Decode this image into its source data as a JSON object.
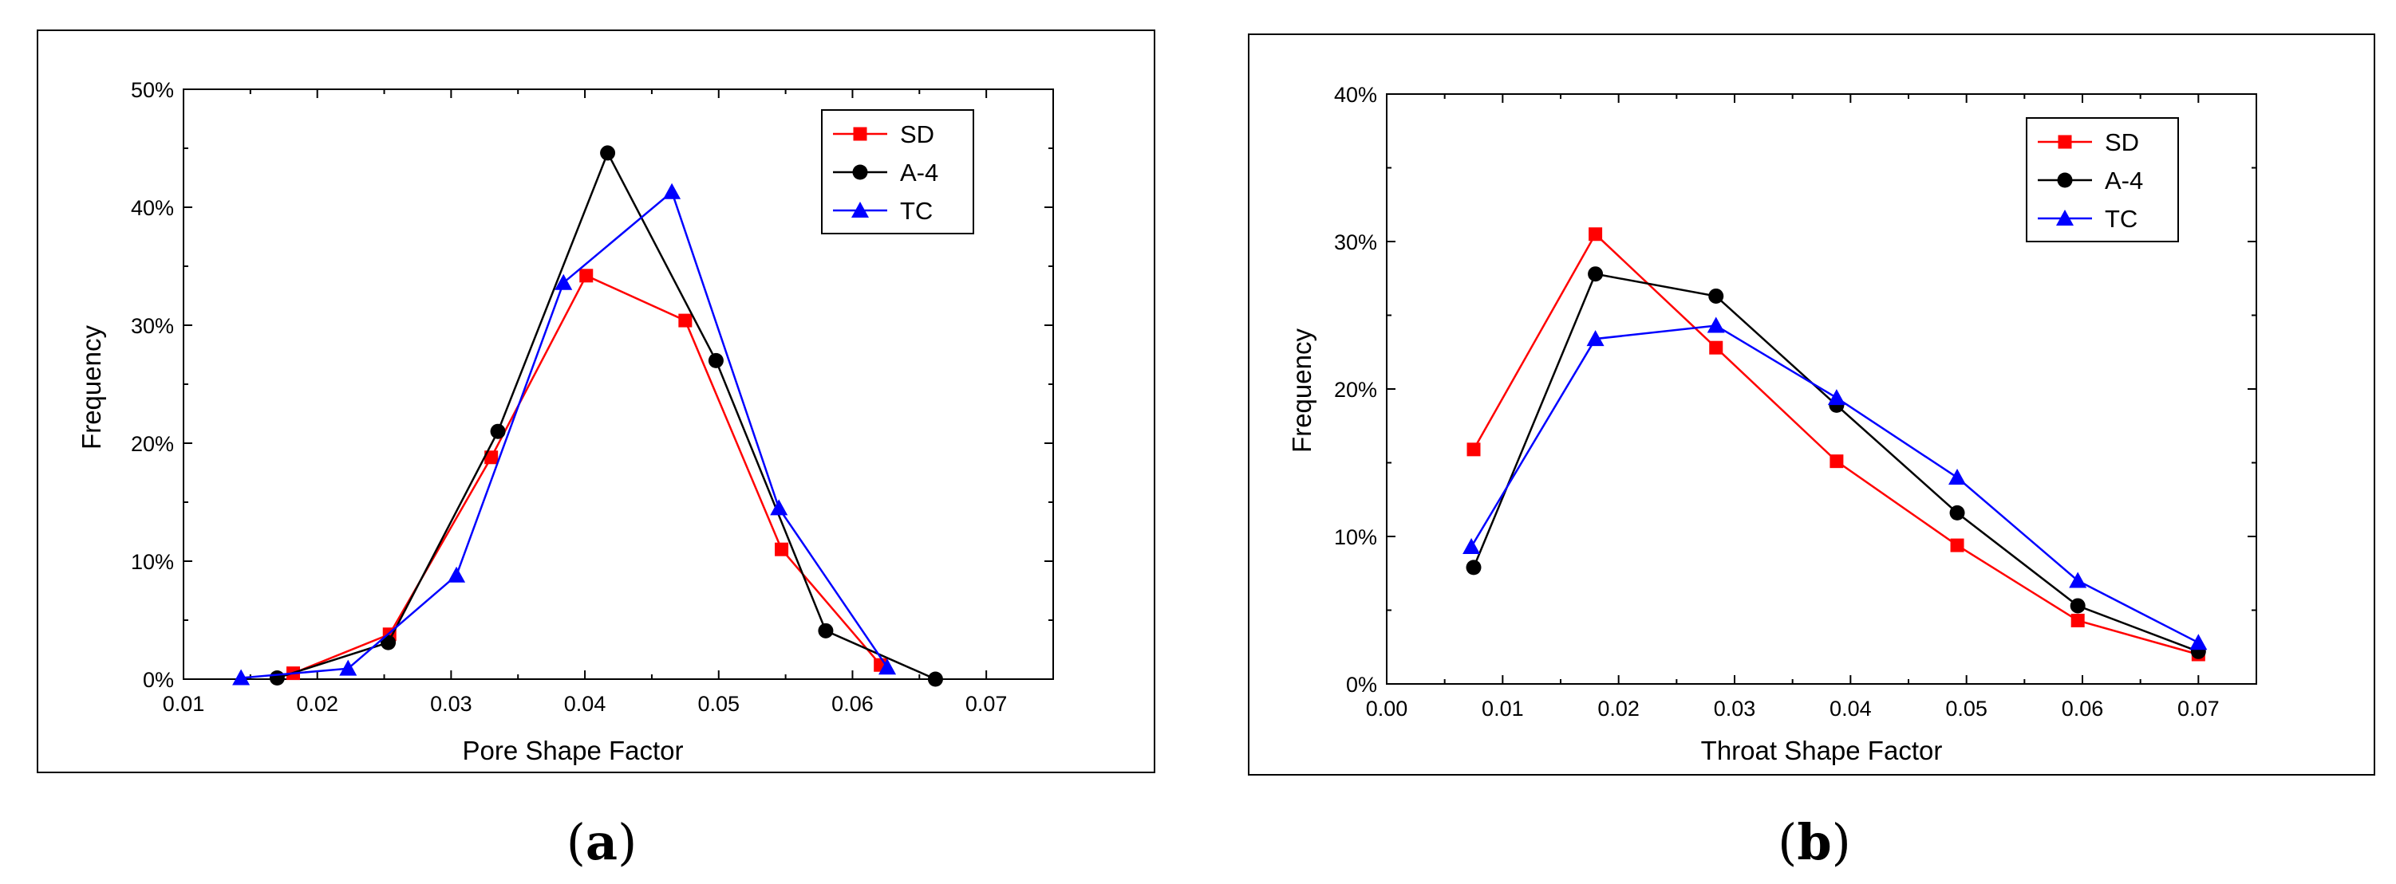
{
  "chart_data": [
    {
      "type": "line",
      "panel_label": "a",
      "title": "",
      "xlabel": "Pore Shape Factor",
      "ylabel": "Frequency",
      "xlim": [
        0.01,
        0.075
      ],
      "ylim": [
        0,
        0.5
      ],
      "xticks": [
        0.01,
        0.02,
        0.03,
        0.04,
        0.05,
        0.06,
        0.07
      ],
      "xtick_labels": [
        "0.01",
        "0.02",
        "0.03",
        "0.04",
        "0.05",
        "0.06",
        "0.07"
      ],
      "yticks": [
        0,
        0.1,
        0.2,
        0.3,
        0.4,
        0.5
      ],
      "ytick_labels": [
        "0%",
        "10%",
        "20%",
        "30%",
        "40%",
        "50%"
      ],
      "legend_position": "top-right",
      "series": [
        {
          "name": "SD",
          "color": "#ff0000",
          "marker": "square",
          "points": [
            [
              0.0182,
              0.005
            ],
            [
              0.0254,
              0.038
            ],
            [
              0.033,
              0.188
            ],
            [
              0.0401,
              0.342
            ],
            [
              0.0475,
              0.304
            ],
            [
              0.0547,
              0.11
            ],
            [
              0.0621,
              0.012
            ]
          ]
        },
        {
          "name": "A-4",
          "color": "#000000",
          "marker": "circle",
          "points": [
            [
              0.017,
              0.001
            ],
            [
              0.0253,
              0.031
            ],
            [
              0.0335,
              0.21
            ],
            [
              0.0417,
              0.446
            ],
            [
              0.0498,
              0.27
            ],
            [
              0.058,
              0.041
            ],
            [
              0.0662,
              0.0
            ]
          ]
        },
        {
          "name": "TC",
          "color": "#0000ff",
          "marker": "triangle",
          "points": [
            [
              0.0143,
              0.001
            ],
            [
              0.0223,
              0.009
            ],
            [
              0.0304,
              0.088
            ],
            [
              0.0384,
              0.336
            ],
            [
              0.0465,
              0.413
            ],
            [
              0.0545,
              0.145
            ],
            [
              0.0626,
              0.01
            ]
          ]
        }
      ]
    },
    {
      "type": "line",
      "panel_label": "b",
      "title": "",
      "xlabel": "Throat Shape Factor",
      "ylabel": "Frequency",
      "xlim": [
        0.0,
        0.075
      ],
      "ylim": [
        0,
        0.4
      ],
      "xticks": [
        0.0,
        0.01,
        0.02,
        0.03,
        0.04,
        0.05,
        0.06,
        0.07
      ],
      "xtick_labels": [
        "0.00",
        "0.01",
        "0.02",
        "0.03",
        "0.04",
        "0.05",
        "0.06",
        "0.07"
      ],
      "yticks": [
        0,
        0.1,
        0.2,
        0.3,
        0.4
      ],
      "ytick_labels": [
        "0%",
        "10%",
        "20%",
        "30%",
        "40%"
      ],
      "legend_position": "top-right",
      "series": [
        {
          "name": "SD",
          "color": "#ff0000",
          "marker": "square",
          "points": [
            [
              0.0075,
              0.159
            ],
            [
              0.018,
              0.305
            ],
            [
              0.0284,
              0.228
            ],
            [
              0.0388,
              0.151
            ],
            [
              0.0492,
              0.094
            ],
            [
              0.0596,
              0.043
            ],
            [
              0.07,
              0.02
            ]
          ]
        },
        {
          "name": "A-4",
          "color": "#000000",
          "marker": "circle",
          "points": [
            [
              0.0075,
              0.079
            ],
            [
              0.018,
              0.278
            ],
            [
              0.0284,
              0.263
            ],
            [
              0.0388,
              0.189
            ],
            [
              0.0492,
              0.116
            ],
            [
              0.0596,
              0.053
            ],
            [
              0.07,
              0.022
            ]
          ]
        },
        {
          "name": "TC",
          "color": "#0000ff",
          "marker": "triangle",
          "points": [
            [
              0.0073,
              0.093
            ],
            [
              0.018,
              0.234
            ],
            [
              0.0284,
              0.243
            ],
            [
              0.0388,
              0.194
            ],
            [
              0.0492,
              0.14
            ],
            [
              0.0596,
              0.07
            ],
            [
              0.07,
              0.028
            ]
          ]
        }
      ]
    }
  ]
}
